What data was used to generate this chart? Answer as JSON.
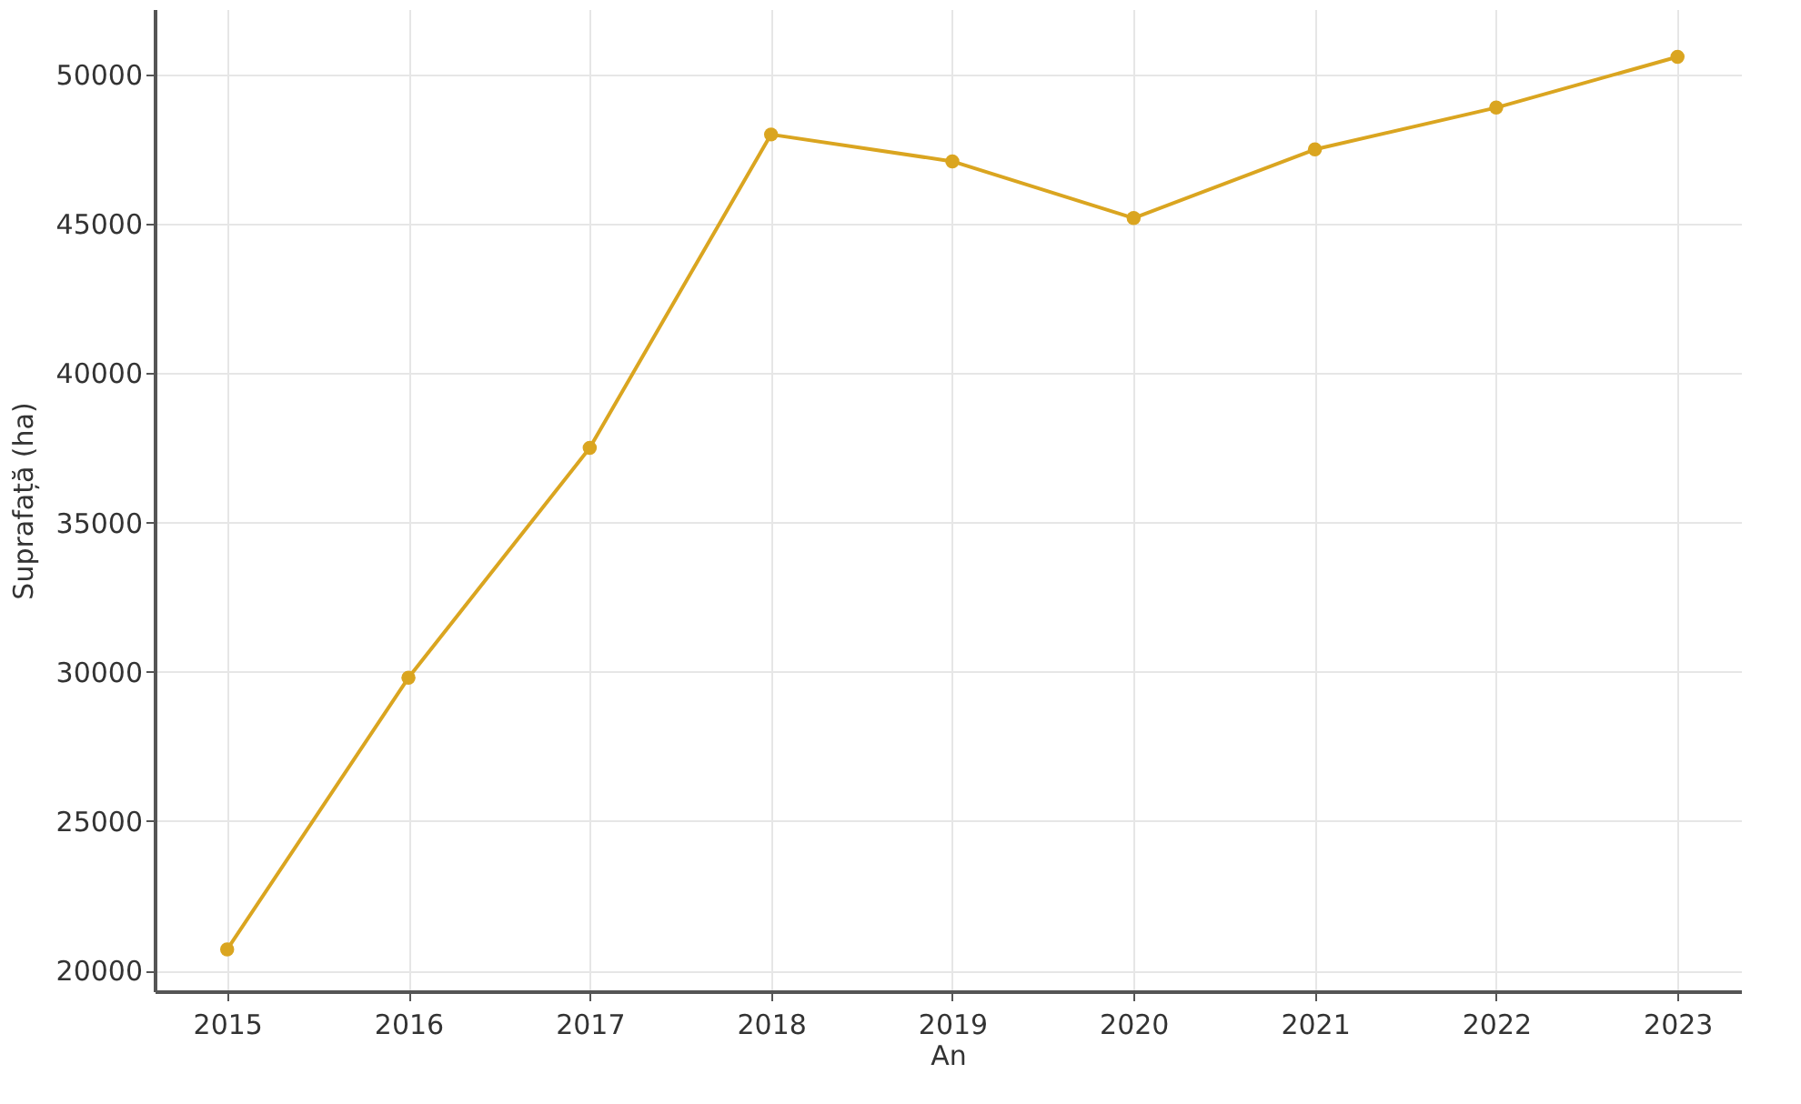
{
  "chart_data": {
    "type": "line",
    "xlabel": "An",
    "ylabel": "Suprafață (ha)",
    "x": [
      2015,
      2016,
      2017,
      2018,
      2019,
      2020,
      2021,
      2022,
      2023
    ],
    "series": [
      {
        "color": "#daa520",
        "values": [
          20700,
          29800,
          37500,
          48000,
          47100,
          45200,
          47500,
          48900,
          50600
        ]
      }
    ],
    "xlim": [
      2014.6,
      2023.35
    ],
    "xticks": [
      2015,
      2016,
      2017,
      2018,
      2019,
      2020,
      2021,
      2022,
      2023
    ],
    "ylim": [
      19300,
      52200
    ],
    "yticks": [
      20000,
      25000,
      30000,
      35000,
      40000,
      45000,
      50000
    ],
    "grid": true,
    "marker": "circle",
    "line_style": "solid"
  }
}
